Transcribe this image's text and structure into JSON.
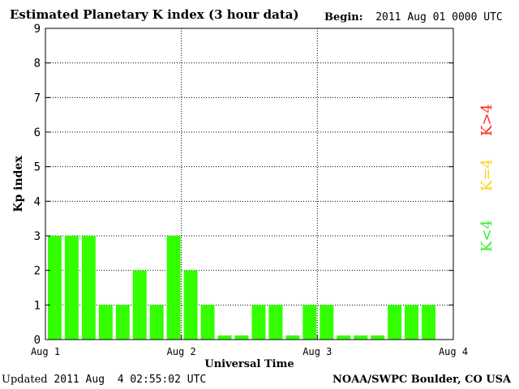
{
  "header": {
    "title": "Estimated Planetary K index (3 hour data)",
    "begin_label": "Begin:",
    "begin_value": "2011 Aug 01 0000 UTC"
  },
  "footer": {
    "updated_label": "Updated",
    "updated_value": "2011 Aug  4 02:55:02 UTC",
    "credit": "NOAA/SWPC Boulder, CO USA"
  },
  "legend": {
    "high": {
      "label": "K>4",
      "color": "#ff2a1a"
    },
    "mid": {
      "label": "K=4",
      "color": "#ffd21a"
    },
    "low": {
      "label": "K<4",
      "color": "#33ee33"
    }
  },
  "chart_data": {
    "type": "bar",
    "xlabel": "Universal Time",
    "ylabel": "Kp index",
    "ylim": [
      0,
      9
    ],
    "yticks": [
      "0",
      "1",
      "2",
      "3",
      "4",
      "5",
      "6",
      "7",
      "8",
      "9"
    ],
    "xlim_days": [
      0,
      3
    ],
    "xticks": [
      "Aug 1",
      "Aug 2",
      "Aug 3",
      "Aug 4"
    ],
    "grid": "dotted",
    "interval_hours": 3,
    "bar_color": "#33ff00",
    "values": [
      3,
      3,
      3,
      1,
      1,
      2,
      1,
      3,
      2,
      1,
      0,
      0,
      1,
      1,
      0,
      1,
      1,
      0,
      0,
      0,
      1,
      1,
      1,
      null
    ]
  }
}
